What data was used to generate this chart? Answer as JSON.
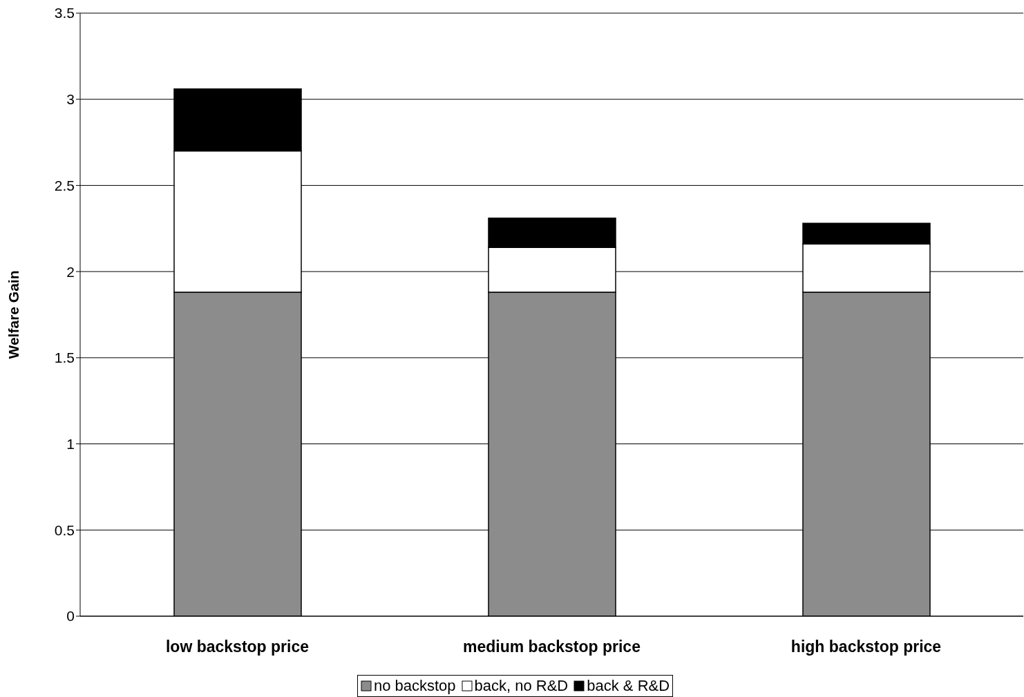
{
  "chart_data": {
    "type": "bar",
    "stacked": true,
    "ylabel": "Welfare Gain",
    "categories": [
      "low backstop price",
      "medium backstop price",
      "high backstop price"
    ],
    "series": [
      {
        "name": "no backstop",
        "color": "#8c8c8c",
        "values": [
          1.88,
          1.88,
          1.88
        ]
      },
      {
        "name": "back, no R&D",
        "color": "#ffffff",
        "values": [
          0.82,
          0.26,
          0.28
        ]
      },
      {
        "name": "back & R&D",
        "color": "#000000",
        "values": [
          0.36,
          0.17,
          0.12
        ]
      }
    ],
    "ylim": [
      0,
      3.5
    ],
    "yticks": [
      0,
      0.5,
      1,
      1.5,
      2,
      2.5,
      3,
      3.5
    ],
    "grid": "y",
    "legend": "bottom"
  }
}
